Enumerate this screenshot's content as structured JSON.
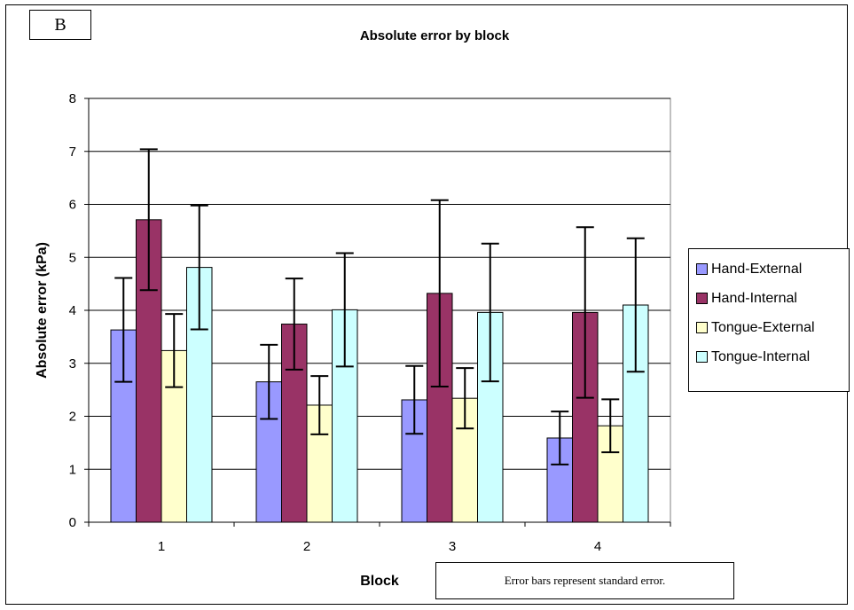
{
  "panel_label": "B",
  "note": "Error bars represent standard error.",
  "chart_data": {
    "type": "bar",
    "title": "Absolute error by block",
    "xlabel": "Block",
    "ylabel": "Absolute error (kPa)",
    "ylim": [
      0,
      8
    ],
    "yticks": [
      0,
      1,
      2,
      3,
      4,
      5,
      6,
      7,
      8
    ],
    "categories": [
      "1",
      "2",
      "3",
      "4"
    ],
    "grid": "horizontal",
    "legend_position": "right",
    "series": [
      {
        "name": "Hand-External",
        "color": "#9999ff",
        "values": [
          3.63,
          2.65,
          2.31,
          1.59
        ],
        "error": [
          0.98,
          0.7,
          0.64,
          0.5
        ]
      },
      {
        "name": "Hand-Internal",
        "color": "#993366",
        "values": [
          5.71,
          3.74,
          4.32,
          3.96
        ],
        "error": [
          1.33,
          0.86,
          1.76,
          1.61
        ]
      },
      {
        "name": "Tongue-External",
        "color": "#ffffcc",
        "values": [
          3.24,
          2.21,
          2.34,
          1.82
        ],
        "error": [
          0.69,
          0.55,
          0.57,
          0.5
        ]
      },
      {
        "name": "Tongue-Internal",
        "color": "#ccffff",
        "values": [
          4.81,
          4.01,
          3.96,
          4.1
        ],
        "error": [
          1.17,
          1.07,
          1.3,
          1.26
        ]
      }
    ]
  }
}
